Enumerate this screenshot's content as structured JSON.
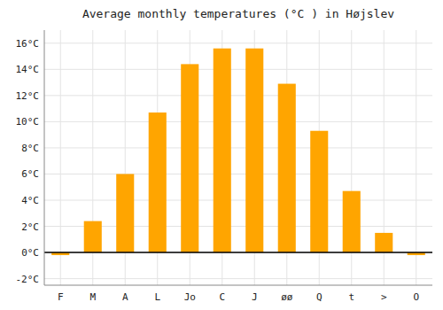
{
  "chart_data": {
    "type": "bar",
    "title": "Average monthly temperatures (°C ) in Højslev",
    "categories": [
      "F",
      "M",
      "A",
      "L",
      "Jo",
      "C",
      "J",
      "øø",
      "Q",
      "t",
      ">",
      "O"
    ],
    "values": [
      -0.2,
      2.4,
      6.0,
      10.7,
      14.4,
      15.6,
      15.6,
      12.9,
      9.3,
      4.7,
      1.5,
      -0.2
    ],
    "color": "#FFA500",
    "ylim": [
      -2.5,
      17.0
    ],
    "yticks": [
      {
        "value": -2,
        "label": "-2°C"
      },
      {
        "value": 0,
        "label": "0°C"
      },
      {
        "value": 2,
        "label": "2°C"
      },
      {
        "value": 4,
        "label": "4°C"
      },
      {
        "value": 6,
        "label": "6°C"
      },
      {
        "value": 8,
        "label": "8°C"
      },
      {
        "value": 10,
        "label": "10°C"
      },
      {
        "value": 12,
        "label": "12°C"
      },
      {
        "value": 14,
        "label": "14°C"
      },
      {
        "value": 16,
        "label": "16°C"
      }
    ],
    "grid": true
  }
}
